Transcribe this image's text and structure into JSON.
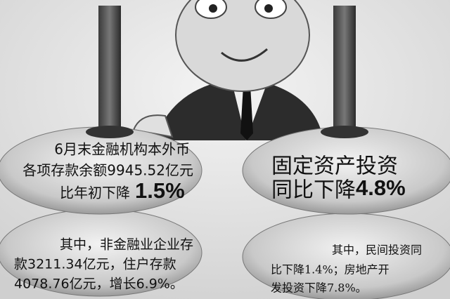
{
  "left": {
    "top": {
      "lines": [
        "6月末金融机构本外币",
        "各项存款余额9945.52亿元"
      ],
      "lead": "比年初下降",
      "figure": "1.5%"
    },
    "bottom": {
      "lines": [
        "其中，非金融业企业存",
        "款3211.34亿元，住户存款",
        "4078.76亿元，增长6.9%。"
      ]
    }
  },
  "right": {
    "top": {
      "line": "固定资产投资",
      "lead": "同比下降",
      "figure": "4.8%"
    },
    "bottom": {
      "lines": [
        "其中，民间投资同",
        "比下降1.4%；房地产开",
        "发投资下降7.8%。"
      ]
    }
  }
}
